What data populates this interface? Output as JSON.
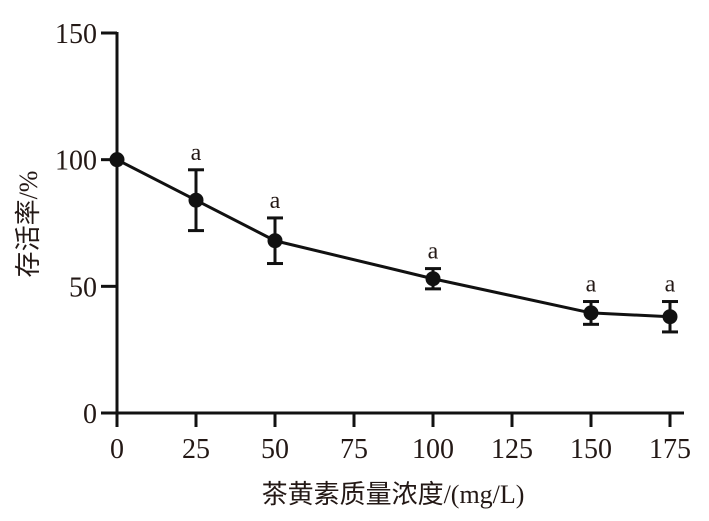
{
  "chart_data": {
    "type": "line",
    "title": "",
    "xlabel": "茶黄素质量浓度/(mg/L)",
    "ylabel": "存活率/%",
    "xlim": [
      0,
      175
    ],
    "ylim": [
      0,
      150
    ],
    "x_ticks": [
      "0",
      "25",
      "50",
      "75",
      "100",
      "125",
      "150",
      "175"
    ],
    "y_ticks": [
      "0",
      "50",
      "100",
      "150"
    ],
    "grid": false,
    "legend": "none",
    "series": [
      {
        "x": [
          0,
          25,
          50,
          100,
          150,
          175
        ],
        "values": [
          100,
          84,
          68,
          53,
          39.5,
          38
        ],
        "error": [
          0,
          12,
          9,
          4,
          4.5,
          6
        ],
        "annotations": [
          "",
          "a",
          "a",
          "a",
          "a",
          "a"
        ]
      }
    ],
    "colors": {
      "line": "#111111",
      "axis": "#111111",
      "text": "#231815"
    }
  }
}
